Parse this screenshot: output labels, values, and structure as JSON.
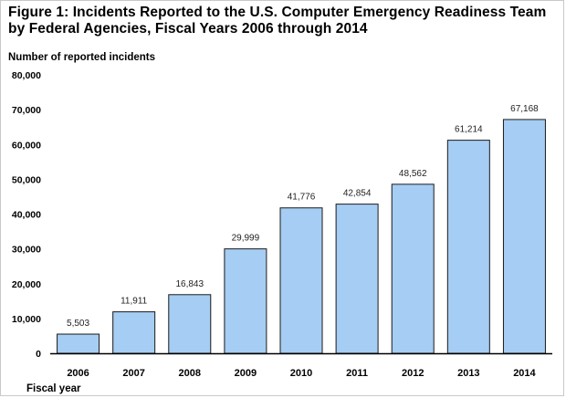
{
  "chart_data": {
    "type": "bar",
    "title": "Figure 1: Incidents Reported to the U.S. Computer Emergency Readiness Team by Federal Agencies, Fiscal Years 2006 through 2014",
    "ylabel": "Number of reported incidents",
    "xlabel": "Fiscal year",
    "categories": [
      "2006",
      "2007",
      "2008",
      "2009",
      "2010",
      "2011",
      "2012",
      "2013",
      "2014"
    ],
    "values": [
      5503,
      11911,
      16843,
      29999,
      41776,
      42854,
      48562,
      61214,
      67168
    ],
    "data_labels": [
      "5,503",
      "11,911",
      "16,843",
      "29,999",
      "41,776",
      "42,854",
      "48,562",
      "61,214",
      "67,168"
    ],
    "ylim": [
      0,
      80000
    ],
    "yticks": [
      0,
      10000,
      20000,
      30000,
      40000,
      50000,
      60000,
      70000,
      80000
    ],
    "ytick_labels": [
      "0",
      "10,000",
      "20,000",
      "30,000",
      "40,000",
      "50,000",
      "60,000",
      "70,000",
      "80,000"
    ],
    "grid": false,
    "legend": "none",
    "colors": {
      "bar_fill": "#a6cdf3",
      "bar_stroke": "#1a1a1a",
      "axis": "#000000"
    }
  }
}
